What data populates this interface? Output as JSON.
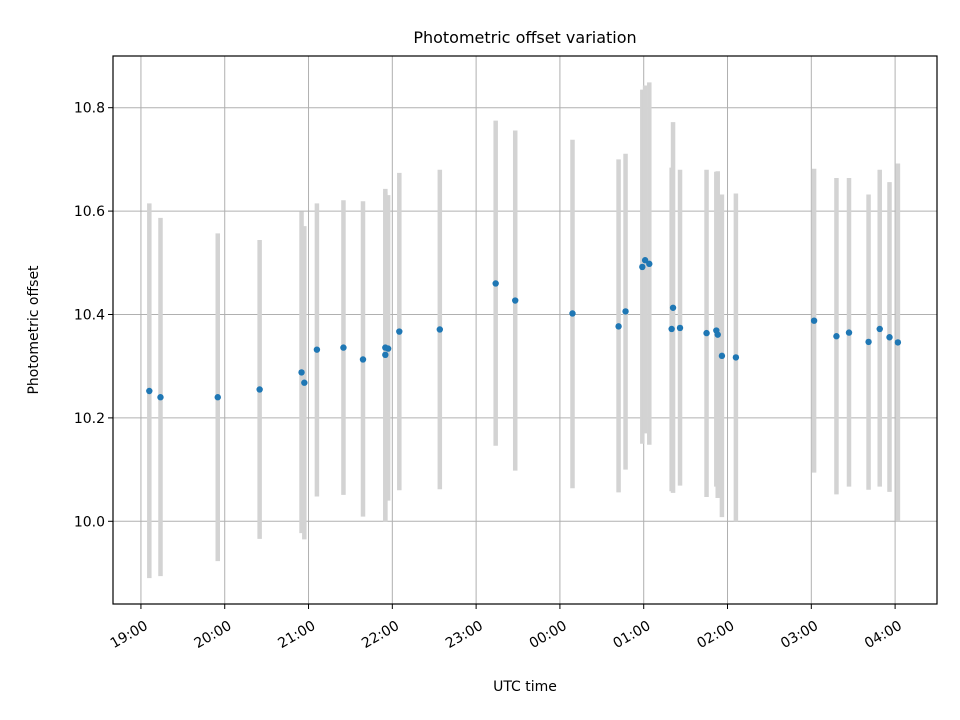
{
  "chart_data": {
    "type": "scatter",
    "title": "Photometric offset variation",
    "xlabel": "UTC time",
    "ylabel": "Photometric offset",
    "x_ticks": [
      "19:00",
      "20:00",
      "21:00",
      "22:00",
      "23:00",
      "00:00",
      "01:00",
      "02:00",
      "03:00",
      "04:00"
    ],
    "y_ticks": [
      "10.0",
      "10.2",
      "10.4",
      "10.6",
      "10.8"
    ],
    "xlim": [
      "18:40",
      "04:30"
    ],
    "ylim": [
      9.84,
      10.9
    ],
    "grid": true,
    "point_color": "#1f77b4",
    "errorbar_color": "#d3d3d3",
    "points": [
      {
        "x": "19:06",
        "y": 10.252,
        "lo": 9.89,
        "hi": 10.615
      },
      {
        "x": "19:14",
        "y": 10.24,
        "lo": 9.894,
        "hi": 10.587
      },
      {
        "x": "19:55",
        "y": 10.24,
        "lo": 9.923,
        "hi": 10.557
      },
      {
        "x": "20:25",
        "y": 10.255,
        "lo": 9.966,
        "hi": 10.544
      },
      {
        "x": "20:55",
        "y": 10.288,
        "lo": 9.977,
        "hi": 10.599
      },
      {
        "x": "20:57",
        "y": 10.268,
        "lo": 9.965,
        "hi": 10.571
      },
      {
        "x": "21:06",
        "y": 10.332,
        "lo": 10.048,
        "hi": 10.615
      },
      {
        "x": "21:25",
        "y": 10.336,
        "lo": 10.051,
        "hi": 10.621
      },
      {
        "x": "21:39",
        "y": 10.313,
        "lo": 10.009,
        "hi": 10.619
      },
      {
        "x": "21:55",
        "y": 10.336,
        "lo": 10.0,
        "hi": 10.643
      },
      {
        "x": "21:55",
        "y": 10.322,
        "lo": 10.0,
        "hi": 10.637
      },
      {
        "x": "21:57",
        "y": 10.334,
        "lo": 10.04,
        "hi": 10.631
      },
      {
        "x": "22:05",
        "y": 10.367,
        "lo": 10.06,
        "hi": 10.674
      },
      {
        "x": "22:34",
        "y": 10.371,
        "lo": 10.062,
        "hi": 10.68
      },
      {
        "x": "23:14",
        "y": 10.46,
        "lo": 10.146,
        "hi": 10.775
      },
      {
        "x": "23:28",
        "y": 10.427,
        "lo": 10.098,
        "hi": 10.756
      },
      {
        "x": "00:09",
        "y": 10.402,
        "lo": 10.064,
        "hi": 10.738
      },
      {
        "x": "00:42",
        "y": 10.377,
        "lo": 10.056,
        "hi": 10.7
      },
      {
        "x": "00:47",
        "y": 10.406,
        "lo": 10.1,
        "hi": 10.711
      },
      {
        "x": "00:59",
        "y": 10.492,
        "lo": 10.15,
        "hi": 10.835
      },
      {
        "x": "01:01",
        "y": 10.505,
        "lo": 10.17,
        "hi": 10.843
      },
      {
        "x": "01:04",
        "y": 10.498,
        "lo": 10.148,
        "hi": 10.849
      },
      {
        "x": "01:20",
        "y": 10.372,
        "lo": 10.058,
        "hi": 10.684
      },
      {
        "x": "01:21",
        "y": 10.413,
        "lo": 10.055,
        "hi": 10.772
      },
      {
        "x": "01:26",
        "y": 10.374,
        "lo": 10.069,
        "hi": 10.68
      },
      {
        "x": "01:45",
        "y": 10.364,
        "lo": 10.047,
        "hi": 10.68
      },
      {
        "x": "01:52",
        "y": 10.369,
        "lo": 10.067,
        "hi": 10.676
      },
      {
        "x": "01:53",
        "y": 10.361,
        "lo": 10.045,
        "hi": 10.677
      },
      {
        "x": "01:56",
        "y": 10.32,
        "lo": 10.008,
        "hi": 10.632
      },
      {
        "x": "02:06",
        "y": 10.317,
        "lo": 10.0,
        "hi": 10.634
      },
      {
        "x": "03:02",
        "y": 10.388,
        "lo": 10.094,
        "hi": 10.682
      },
      {
        "x": "03:18",
        "y": 10.358,
        "lo": 10.052,
        "hi": 10.664
      },
      {
        "x": "03:27",
        "y": 10.365,
        "lo": 10.067,
        "hi": 10.664
      },
      {
        "x": "03:41",
        "y": 10.347,
        "lo": 10.061,
        "hi": 10.632
      },
      {
        "x": "03:49",
        "y": 10.372,
        "lo": 10.067,
        "hi": 10.68
      },
      {
        "x": "03:56",
        "y": 10.356,
        "lo": 10.057,
        "hi": 10.656
      },
      {
        "x": "04:02",
        "y": 10.346,
        "lo": 10.0,
        "hi": 10.692
      }
    ]
  }
}
